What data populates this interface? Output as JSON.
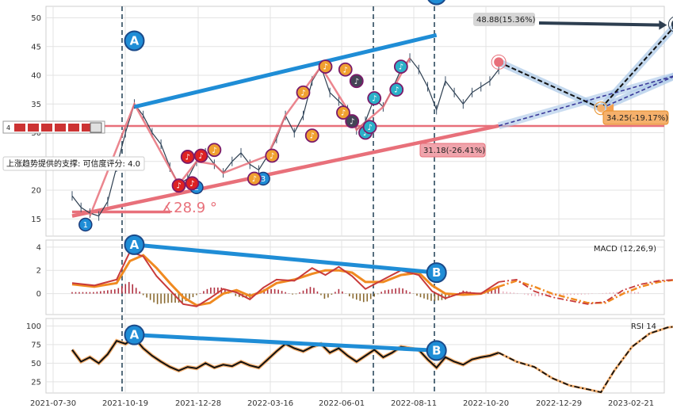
{
  "chart_data": {
    "type": "line",
    "x_ticks": [
      "2021-07-30",
      "2021-10-19",
      "2021-12-28",
      "2022-03-16",
      "2022-06-01",
      "2022-08-11",
      "2022-10-20",
      "2022-12-29",
      "2023-02-21"
    ],
    "panels": [
      {
        "id": "price",
        "ylim": [
          12,
          52
        ],
        "y_ticks": [
          15,
          20,
          25,
          30,
          35,
          40,
          45,
          50
        ],
        "price_path": [
          [
            0,
            19
          ],
          [
            2,
            17
          ],
          [
            4,
            16
          ],
          [
            6,
            15.5
          ],
          [
            8,
            18
          ],
          [
            10,
            24
          ],
          [
            12,
            30
          ],
          [
            14,
            35
          ],
          [
            16,
            33
          ],
          [
            18,
            30
          ],
          [
            20,
            28
          ],
          [
            22,
            24
          ],
          [
            24,
            21
          ],
          [
            26,
            22
          ],
          [
            28,
            25
          ],
          [
            30,
            26.5
          ],
          [
            32,
            24.5
          ],
          [
            34,
            23
          ],
          [
            36,
            25
          ],
          [
            38,
            26.5
          ],
          [
            40,
            24.5
          ],
          [
            42,
            23.5
          ],
          [
            44,
            26
          ],
          [
            46,
            29
          ],
          [
            48,
            33
          ],
          [
            50,
            30
          ],
          [
            52,
            33
          ],
          [
            54,
            39
          ],
          [
            56,
            41.5
          ],
          [
            58,
            37
          ],
          [
            60,
            35.5
          ],
          [
            62,
            34
          ],
          [
            64,
            30.5
          ],
          [
            66,
            32
          ],
          [
            68,
            36
          ],
          [
            70,
            34.5
          ],
          [
            72,
            37.5
          ],
          [
            74,
            41
          ],
          [
            76,
            43
          ],
          [
            78,
            41
          ],
          [
            80,
            38
          ],
          [
            82,
            34
          ],
          [
            84,
            39
          ],
          [
            86,
            37
          ],
          [
            88,
            35
          ],
          [
            90,
            37
          ],
          [
            92,
            38
          ],
          [
            94,
            39
          ],
          [
            96,
            41
          ]
        ],
        "annotations": {
          "target_up": "48.88(15.36%)",
          "target_mid": "34.25(-19.17%)",
          "target_low": "31.18(-26.41%)",
          "angle": "∡28.9 °",
          "support_text": "上涨趋势提供的支撑: 可信度评分: 4.0",
          "marker_a": "A",
          "marker_b": "B",
          "wave_1": "1",
          "wave_2": "2",
          "wave_3": "3",
          "mini_badge": "4"
        },
        "horizontal_line": 31.18,
        "forecast": {
          "start": [
            96,
            42.3
          ],
          "mid": [
            119,
            34.25
          ],
          "up": [
            136,
            48.88
          ],
          "up_alt": [
            136,
            40
          ]
        }
      },
      {
        "id": "macd",
        "label": "MACD (12,26,9)",
        "ylim": [
          -1.8,
          4.6
        ],
        "y_ticks": [
          0,
          2,
          4
        ],
        "macd": [
          [
            0,
            0.9
          ],
          [
            5,
            0.7
          ],
          [
            10,
            1.2
          ],
          [
            13,
            3.6
          ],
          [
            16,
            3.2
          ],
          [
            19,
            1.5
          ],
          [
            22,
            0.3
          ],
          [
            25,
            -0.9
          ],
          [
            28,
            -1.1
          ],
          [
            31,
            -0.4
          ],
          [
            34,
            0.4
          ],
          [
            37,
            0.1
          ],
          [
            40,
            -0.5
          ],
          [
            43,
            0.5
          ],
          [
            46,
            1.2
          ],
          [
            50,
            1.1
          ],
          [
            54,
            2.2
          ],
          [
            57,
            1.6
          ],
          [
            60,
            2.3
          ],
          [
            63,
            1.5
          ],
          [
            66,
            0.4
          ],
          [
            70,
            1.2
          ],
          [
            74,
            2.0
          ],
          [
            78,
            1.6
          ],
          [
            81,
            0.2
          ],
          [
            84,
            -0.4
          ],
          [
            88,
            0.1
          ],
          [
            92,
            0.0
          ],
          [
            96,
            1.0
          ]
        ],
        "signal": [
          [
            0,
            0.8
          ],
          [
            5,
            0.6
          ],
          [
            10,
            0.9
          ],
          [
            13,
            2.8
          ],
          [
            16,
            3.3
          ],
          [
            19,
            2.2
          ],
          [
            22,
            0.9
          ],
          [
            25,
            -0.3
          ],
          [
            28,
            -1.0
          ],
          [
            31,
            -0.8
          ],
          [
            34,
            0.0
          ],
          [
            37,
            0.3
          ],
          [
            40,
            -0.2
          ],
          [
            43,
            0.2
          ],
          [
            46,
            0.9
          ],
          [
            50,
            1.2
          ],
          [
            54,
            1.7
          ],
          [
            57,
            2.0
          ],
          [
            60,
            2.0
          ],
          [
            63,
            1.8
          ],
          [
            66,
            1.0
          ],
          [
            70,
            1.0
          ],
          [
            74,
            1.6
          ],
          [
            78,
            1.8
          ],
          [
            81,
            0.7
          ],
          [
            84,
            0.0
          ],
          [
            88,
            -0.1
          ],
          [
            92,
            0.0
          ],
          [
            96,
            0.6
          ]
        ],
        "forecast_macd": [
          [
            96,
            1.0
          ],
          [
            100,
            1.2
          ],
          [
            104,
            0.2
          ],
          [
            108,
            -0.3
          ],
          [
            112,
            -0.6
          ],
          [
            116,
            -0.9
          ],
          [
            120,
            -0.7
          ],
          [
            124,
            0.3
          ],
          [
            128,
            0.8
          ],
          [
            132,
            1.1
          ],
          [
            136,
            1.2
          ]
        ],
        "forecast_signal": [
          [
            96,
            0.6
          ],
          [
            100,
            1.1
          ],
          [
            104,
            0.6
          ],
          [
            108,
            0.0
          ],
          [
            112,
            -0.4
          ],
          [
            116,
            -0.8
          ],
          [
            120,
            -0.8
          ],
          [
            124,
            0.0
          ],
          [
            128,
            0.6
          ],
          [
            132,
            1.0
          ],
          [
            136,
            1.2
          ]
        ]
      },
      {
        "id": "rsi",
        "label": "RSI 14",
        "ylim": [
          10,
          110
        ],
        "y_ticks": [
          25,
          50,
          75,
          100
        ],
        "rsi": [
          [
            0,
            68
          ],
          [
            2,
            52
          ],
          [
            4,
            58
          ],
          [
            6,
            50
          ],
          [
            8,
            62
          ],
          [
            10,
            80
          ],
          [
            12,
            76
          ],
          [
            14,
            84
          ],
          [
            16,
            70
          ],
          [
            18,
            60
          ],
          [
            20,
            52
          ],
          [
            22,
            45
          ],
          [
            24,
            40
          ],
          [
            26,
            45
          ],
          [
            28,
            43
          ],
          [
            30,
            50
          ],
          [
            32,
            44
          ],
          [
            34,
            48
          ],
          [
            36,
            46
          ],
          [
            38,
            52
          ],
          [
            40,
            47
          ],
          [
            42,
            44
          ],
          [
            44,
            55
          ],
          [
            46,
            66
          ],
          [
            48,
            76
          ],
          [
            50,
            70
          ],
          [
            52,
            66
          ],
          [
            54,
            72
          ],
          [
            56,
            76
          ],
          [
            58,
            64
          ],
          [
            60,
            70
          ],
          [
            62,
            60
          ],
          [
            64,
            52
          ],
          [
            66,
            60
          ],
          [
            68,
            68
          ],
          [
            70,
            58
          ],
          [
            72,
            64
          ],
          [
            74,
            72
          ],
          [
            76,
            70
          ],
          [
            78,
            68
          ],
          [
            80,
            55
          ],
          [
            82,
            44
          ],
          [
            84,
            58
          ],
          [
            86,
            52
          ],
          [
            88,
            48
          ],
          [
            90,
            55
          ],
          [
            92,
            58
          ],
          [
            94,
            60
          ],
          [
            96,
            64
          ]
        ],
        "forecast_rsi": [
          [
            96,
            64
          ],
          [
            100,
            52
          ],
          [
            104,
            45
          ],
          [
            108,
            30
          ],
          [
            112,
            20
          ],
          [
            116,
            15
          ],
          [
            119,
            11
          ],
          [
            122,
            40
          ],
          [
            126,
            72
          ],
          [
            130,
            90
          ],
          [
            134,
            98
          ],
          [
            138,
            101
          ]
        ]
      }
    ],
    "patterns": {
      "price": {
        "a": [
          14,
          46
        ],
        "b": [
          82,
          54
        ]
      },
      "macd": {
        "a": [
          14,
          4.2
        ],
        "b": [
          82,
          1.8
        ]
      },
      "rsi": {
        "a": [
          14,
          88
        ],
        "b": [
          82,
          67
        ]
      }
    }
  },
  "colors": {
    "blue": "#1f8dd6",
    "pink": "#e8707a",
    "orange": "#ff8c00",
    "red": "#cc3333",
    "dark": "#2d3e50",
    "grid": "#e3e3e3"
  }
}
